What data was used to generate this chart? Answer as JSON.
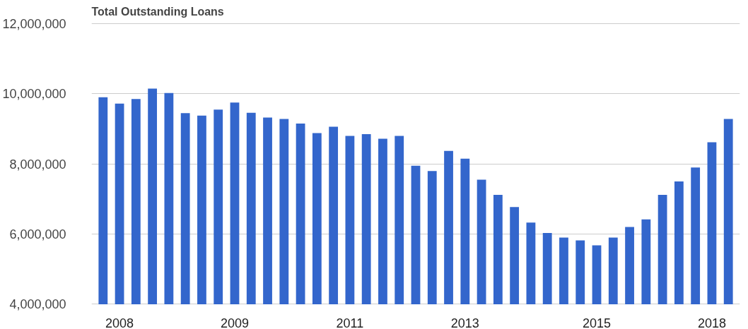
{
  "chart_data": {
    "type": "bar",
    "title": "Total Outstanding Loans",
    "categories": [
      null,
      "2008",
      null,
      null,
      null,
      null,
      null,
      null,
      "2009",
      null,
      null,
      null,
      null,
      null,
      null,
      "2011",
      null,
      null,
      null,
      null,
      null,
      null,
      "2013",
      null,
      null,
      null,
      null,
      null,
      null,
      null,
      "2015",
      null,
      null,
      null,
      null,
      null,
      null,
      "2018",
      null
    ],
    "values": [
      9900000,
      9720000,
      9850000,
      10150000,
      10020000,
      9450000,
      9380000,
      9550000,
      9750000,
      9460000,
      9320000,
      9280000,
      9150000,
      8880000,
      9060000,
      8800000,
      8850000,
      8720000,
      8800000,
      7950000,
      7800000,
      8370000,
      8150000,
      7550000,
      7120000,
      6770000,
      6330000,
      6030000,
      5900000,
      5820000,
      5680000,
      5900000,
      6200000,
      6420000,
      7120000,
      7500000,
      7900000,
      8620000,
      9280000
    ],
    "color": "#3366cc",
    "ylim": [
      4000000,
      12000000
    ],
    "yticks": [
      {
        "value": 4000000,
        "label": "4,000,000"
      },
      {
        "value": 6000000,
        "label": "6,000,000"
      },
      {
        "value": 8000000,
        "label": "8,000,000"
      },
      {
        "value": 10000000,
        "label": "10,000,000"
      },
      {
        "value": 12000000,
        "label": "12,000,000"
      }
    ],
    "grid": "y"
  }
}
